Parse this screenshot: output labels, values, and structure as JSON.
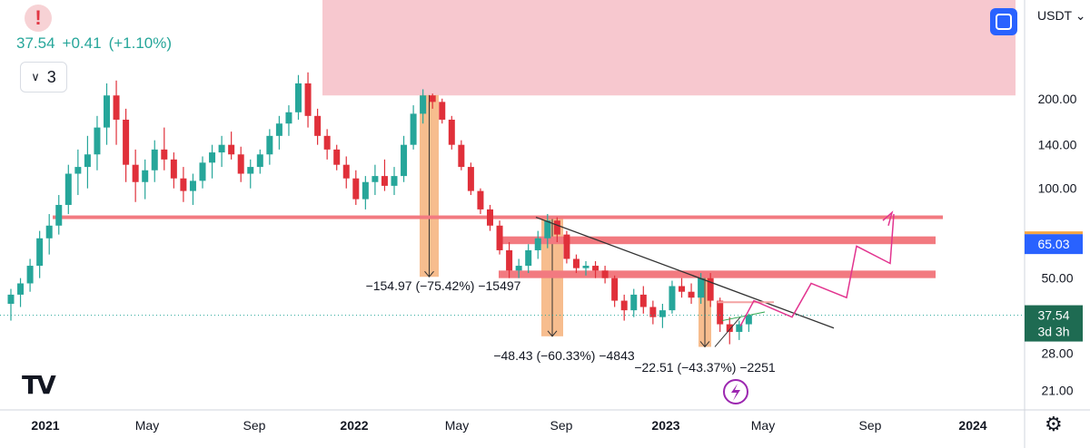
{
  "header": {
    "alert_icon": "exclamation-icon",
    "price": "37.54",
    "change": "+0.41",
    "change_pct": "(+1.10%)",
    "indicator_count": "3",
    "currency": "USDT",
    "currency_caret": "⌄"
  },
  "colors": {
    "up": "#26a69a",
    "down": "#e0303a",
    "zone_pink": "#f7c5cc",
    "resistance": "#f27a80",
    "measure_box": "#f6b27a",
    "projection": "#e2348f",
    "label_blue": "#2962ff",
    "label_green": "#1e6b52",
    "text": "#131722"
  },
  "chart_data": {
    "type": "candlestick",
    "scale": "log",
    "y_ticks": [
      "200.00",
      "140.00",
      "100.00",
      "50.00",
      "28.00",
      "21.00"
    ],
    "x_ticks": [
      "2021",
      "May",
      "Sep",
      "2022",
      "May",
      "Sep",
      "2023",
      "May",
      "Sep",
      "2024"
    ],
    "price_labels": [
      {
        "text": "65.03",
        "value": 65.03,
        "style": "blue"
      },
      {
        "text": "37.54",
        "value": 37.54,
        "style": "green"
      },
      {
        "text": "3d 3h",
        "style": "green"
      }
    ],
    "supply_zone": {
      "from": 205,
      "to": 500
    },
    "resistance_lines": [
      80
    ],
    "resistance_bands": [
      {
        "from": 65,
        "to": 69
      },
      {
        "from": 50,
        "to": 53
      }
    ],
    "measurements": [
      {
        "label": "−154.97 (−75.42%) −15497",
        "from": 205.5,
        "to": 50.5
      },
      {
        "label": "−48.43 (−60.33%) −4843",
        "from": 80.3,
        "to": 31.9
      },
      {
        "label": "−22.51 (−43.37%) −2251",
        "from": 51.9,
        "to": 29.4
      }
    ],
    "trendline": {
      "from_price": 80,
      "to_price": 34
    },
    "current_price": 37.54,
    "projection": [
      34.5,
      42,
      37,
      48,
      43,
      64,
      56,
      82
    ],
    "ohlc": [
      [
        41,
        46,
        36,
        44
      ],
      [
        44,
        50,
        40,
        48
      ],
      [
        48,
        58,
        45,
        55
      ],
      [
        55,
        72,
        50,
        68
      ],
      [
        68,
        82,
        60,
        75
      ],
      [
        75,
        95,
        70,
        88
      ],
      [
        88,
        120,
        82,
        112
      ],
      [
        112,
        135,
        95,
        118
      ],
      [
        118,
        150,
        100,
        130
      ],
      [
        130,
        175,
        115,
        160
      ],
      [
        160,
        225,
        140,
        205
      ],
      [
        205,
        230,
        140,
        170
      ],
      [
        170,
        185,
        105,
        120
      ],
      [
        120,
        135,
        90,
        105
      ],
      [
        105,
        125,
        92,
        115
      ],
      [
        115,
        145,
        105,
        135
      ],
      [
        135,
        160,
        115,
        125
      ],
      [
        125,
        132,
        100,
        108
      ],
      [
        108,
        118,
        90,
        98
      ],
      [
        98,
        112,
        88,
        106
      ],
      [
        106,
        128,
        100,
        122
      ],
      [
        122,
        140,
        108,
        132
      ],
      [
        132,
        150,
        118,
        140
      ],
      [
        140,
        155,
        125,
        130
      ],
      [
        130,
        138,
        105,
        112
      ],
      [
        112,
        125,
        100,
        118
      ],
      [
        118,
        135,
        112,
        130
      ],
      [
        130,
        158,
        120,
        150
      ],
      [
        150,
        175,
        135,
        165
      ],
      [
        165,
        190,
        150,
        180
      ],
      [
        180,
        240,
        170,
        225
      ],
      [
        225,
        245,
        160,
        175
      ],
      [
        175,
        185,
        140,
        150
      ],
      [
        150,
        158,
        125,
        135
      ],
      [
        135,
        140,
        115,
        120
      ],
      [
        120,
        128,
        100,
        108
      ],
      [
        108,
        115,
        88,
        92
      ],
      [
        92,
        110,
        85,
        105
      ],
      [
        105,
        120,
        95,
        110
      ],
      [
        110,
        125,
        98,
        102
      ],
      [
        102,
        118,
        95,
        110
      ],
      [
        110,
        150,
        105,
        140
      ],
      [
        140,
        190,
        135,
        178
      ],
      [
        178,
        215,
        165,
        205
      ],
      [
        205,
        208,
        185,
        195
      ],
      [
        195,
        200,
        165,
        170
      ],
      [
        170,
        175,
        135,
        140
      ],
      [
        140,
        145,
        115,
        118
      ],
      [
        118,
        122,
        95,
        98
      ],
      [
        98,
        100,
        82,
        85
      ],
      [
        85,
        88,
        72,
        75
      ],
      [
        75,
        78,
        60,
        62
      ],
      [
        62,
        66,
        50,
        53
      ],
      [
        53,
        58,
        50,
        55
      ],
      [
        55,
        65,
        52,
        62
      ],
      [
        62,
        72,
        58,
        68
      ],
      [
        68,
        82,
        63,
        78
      ],
      [
        78,
        80,
        66,
        70
      ],
      [
        70,
        72,
        56,
        58
      ],
      [
        58,
        60,
        52,
        54
      ],
      [
        54,
        57,
        51,
        55
      ],
      [
        55,
        57,
        50,
        53
      ],
      [
        53,
        55,
        48,
        50
      ],
      [
        50,
        51,
        40,
        42
      ],
      [
        42,
        44,
        36,
        39
      ],
      [
        39,
        46,
        37,
        44
      ],
      [
        44,
        47,
        38,
        40
      ],
      [
        40,
        42,
        35,
        37
      ],
      [
        37,
        41,
        34,
        39
      ],
      [
        39,
        49,
        38,
        47
      ],
      [
        47,
        50,
        43,
        45
      ],
      [
        45,
        48,
        41,
        43
      ],
      [
        43,
        52,
        41,
        50
      ],
      [
        50,
        52,
        40,
        42
      ],
      [
        42,
        43,
        33,
        35
      ],
      [
        35,
        37,
        30,
        33
      ],
      [
        33,
        36,
        31,
        35
      ],
      [
        35,
        38,
        33,
        37.5
      ]
    ]
  },
  "footer": {
    "settings_icon": "gear-icon"
  }
}
